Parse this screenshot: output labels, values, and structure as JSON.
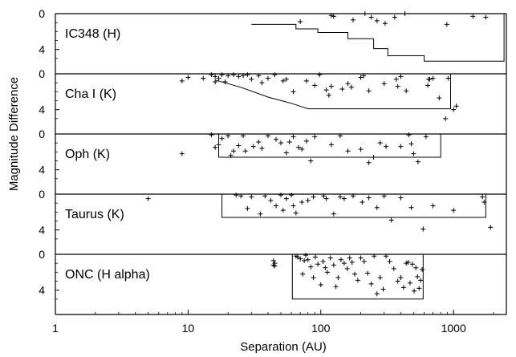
{
  "chart_data": {
    "type": "scatter",
    "xlabel": "Separation (AU)",
    "ylabel": "Magnitude Difference",
    "x_scale": "log",
    "xlim": [
      1,
      2500
    ],
    "x_ticks": [
      1,
      10,
      100,
      1000
    ],
    "x_tick_labels": [
      "1",
      "10",
      "100",
      "1000"
    ],
    "panels": [
      {
        "label": "IC348 (H)",
        "ylim": [
          0,
          6
        ],
        "y_ticks": [
          0,
          4
        ],
        "y_tick_labels": [
          "0",
          "4"
        ],
        "bounds": [
          [
            30,
            1.2
          ],
          [
            65,
            1.2
          ],
          [
            65,
            1.7
          ],
          [
            95,
            1.7
          ],
          [
            95,
            2.1
          ],
          [
            160,
            2.1
          ],
          [
            160,
            2.8
          ],
          [
            250,
            2.8
          ],
          [
            250,
            3.9
          ],
          [
            320,
            3.9
          ],
          [
            320,
            4.7
          ],
          [
            600,
            4.7
          ],
          [
            600,
            5.3
          ],
          [
            2400,
            5.3
          ],
          [
            2400,
            0
          ]
        ],
        "points": [
          [
            70,
            0.9
          ],
          [
            120,
            0.2
          ],
          [
            125,
            0.3
          ],
          [
            175,
            0.7
          ],
          [
            215,
            0
          ],
          [
            240,
            0.4
          ],
          [
            265,
            0.8
          ],
          [
            305,
            1.1
          ],
          [
            360,
            0.4
          ],
          [
            430,
            0
          ],
          [
            890,
            1.2
          ],
          [
            1400,
            0.3
          ],
          [
            1750,
            0.4
          ]
        ]
      },
      {
        "label": "Cha I (K)",
        "ylim": [
          0,
          6
        ],
        "y_ticks": [
          0,
          4
        ],
        "y_tick_labels": [
          "0",
          "4"
        ],
        "bounds": [
          [
            16,
            0.7
          ],
          [
            25,
            1.5
          ],
          [
            40,
            2.6
          ],
          [
            60,
            3.3
          ],
          [
            80,
            3.9
          ],
          [
            950,
            3.9
          ],
          [
            950,
            0
          ]
        ],
        "points": [
          [
            9,
            0.8
          ],
          [
            10,
            0.4
          ],
          [
            13,
            0.5
          ],
          [
            15,
            0.1
          ],
          [
            16,
            0.9
          ],
          [
            16,
            0.3
          ],
          [
            17,
            0.5
          ],
          [
            18,
            0.1
          ],
          [
            19,
            0.9
          ],
          [
            20,
            0.2
          ],
          [
            22,
            0.1
          ],
          [
            24,
            0.3
          ],
          [
            26,
            0.2
          ],
          [
            28,
            0.1
          ],
          [
            30,
            0.6
          ],
          [
            34,
            0.2
          ],
          [
            36,
            1.0
          ],
          [
            40,
            0.5
          ],
          [
            45,
            0.1
          ],
          [
            52,
            0.8
          ],
          [
            55,
            0.6
          ],
          [
            62,
            2.0
          ],
          [
            78,
            0.8
          ],
          [
            90,
            1.3
          ],
          [
            98,
            0.1
          ],
          [
            110,
            1.8
          ],
          [
            115,
            2.4
          ],
          [
            120,
            1.4
          ],
          [
            145,
            1.7
          ],
          [
            160,
            1.1
          ],
          [
            170,
            1.5
          ],
          [
            200,
            0.4
          ],
          [
            210,
            0.2
          ],
          [
            230,
            1.9
          ],
          [
            300,
            1.1
          ],
          [
            370,
            0.6
          ],
          [
            380,
            1.4
          ],
          [
            400,
            0.3
          ],
          [
            440,
            1.9
          ],
          [
            640,
            1.3
          ],
          [
            650,
            0.6
          ],
          [
            660,
            0.6
          ],
          [
            700,
            0.5
          ],
          [
            780,
            2.7
          ],
          [
            870,
            5.0
          ],
          [
            910,
            0.5
          ],
          [
            1000,
            4.0
          ],
          [
            1050,
            3.6
          ]
        ]
      },
      {
        "label": "Oph (K)",
        "ylim": [
          0,
          6
        ],
        "y_ticks": [
          0,
          4
        ],
        "y_tick_labels": [
          "0",
          "4"
        ],
        "bounds": [
          [
            17,
            0
          ],
          [
            17,
            2.6
          ],
          [
            800,
            2.6
          ],
          [
            800,
            0
          ]
        ],
        "points": [
          [
            9,
            2.2
          ],
          [
            15,
            0.1
          ],
          [
            16,
            1.5
          ],
          [
            17,
            1.2
          ],
          [
            18,
            0.5
          ],
          [
            20,
            0.2
          ],
          [
            21,
            2.4
          ],
          [
            22,
            1.9
          ],
          [
            24,
            1.3
          ],
          [
            26,
            0.2
          ],
          [
            27,
            1.9
          ],
          [
            31,
            1.4
          ],
          [
            34,
            0.9
          ],
          [
            36,
            1.6
          ],
          [
            40,
            0.2
          ],
          [
            46,
            0.6
          ],
          [
            50,
            1.0
          ],
          [
            55,
            2.1
          ],
          [
            58,
            0.9
          ],
          [
            62,
            0.3
          ],
          [
            68,
            1.5
          ],
          [
            72,
            1.7
          ],
          [
            78,
            0.8
          ],
          [
            84,
            3.0
          ],
          [
            90,
            0.3
          ],
          [
            120,
            1.2
          ],
          [
            140,
            0.2
          ],
          [
            160,
            1.9
          ],
          [
            200,
            1.7
          ],
          [
            230,
            3.2
          ],
          [
            250,
            2.6
          ],
          [
            280,
            1.0
          ],
          [
            310,
            1.4
          ],
          [
            400,
            1.4
          ],
          [
            460,
            0.1
          ],
          [
            480,
            1.1
          ],
          [
            500,
            2.2
          ],
          [
            540,
            3.1
          ],
          [
            620,
            0.3
          ]
        ]
      },
      {
        "label": "Taurus (K)",
        "ylim": [
          0,
          6
        ],
        "y_ticks": [
          0,
          4
        ],
        "y_tick_labels": [
          "0",
          "4"
        ],
        "bounds": [
          [
            18,
            0
          ],
          [
            18,
            2.6
          ],
          [
            1750,
            2.6
          ],
          [
            1750,
            0
          ]
        ],
        "points": [
          [
            5,
            0.5
          ],
          [
            23,
            0.1
          ],
          [
            25,
            0.2
          ],
          [
            28,
            1.6
          ],
          [
            30,
            0.3
          ],
          [
            35,
            2.2
          ],
          [
            38,
            0.2
          ],
          [
            42,
            0.7
          ],
          [
            46,
            1.3
          ],
          [
            50,
            0.1
          ],
          [
            52,
            1.8
          ],
          [
            55,
            0.5
          ],
          [
            60,
            0.1
          ],
          [
            62,
            1.3
          ],
          [
            65,
            2.1
          ],
          [
            72,
            0.9
          ],
          [
            80,
            0.7
          ],
          [
            88,
            0.3
          ],
          [
            105,
            0.2
          ],
          [
            110,
            0.5
          ],
          [
            125,
            2.2
          ],
          [
            140,
            0.3
          ],
          [
            150,
            0.5
          ],
          [
            175,
            0.2
          ],
          [
            205,
            0.9
          ],
          [
            230,
            0.4
          ],
          [
            265,
            1.5
          ],
          [
            300,
            0.2
          ],
          [
            340,
            2.9
          ],
          [
            400,
            0.4
          ],
          [
            480,
            1.5
          ],
          [
            590,
            3.9
          ],
          [
            700,
            1.3
          ],
          [
            1000,
            1.8
          ],
          [
            1650,
            0.3
          ],
          [
            1700,
            0.9
          ],
          [
            1900,
            3.7
          ]
        ]
      },
      {
        "label": "ONC (H alpha)",
        "ylim": [
          0,
          6
        ],
        "y_ticks": [
          0,
          4
        ],
        "y_tick_labels": [
          "0",
          "4"
        ],
        "bounds": [
          [
            61,
            0
          ],
          [
            61,
            5.0
          ],
          [
            590,
            5.0
          ],
          [
            590,
            0
          ]
        ],
        "points": [
          [
            44,
            0.7
          ],
          [
            44,
            1.2
          ],
          [
            45,
            1.0
          ],
          [
            45,
            1.3
          ],
          [
            65,
            0.2
          ],
          [
            67,
            0.3
          ],
          [
            70,
            0.5
          ],
          [
            73,
            2.2
          ],
          [
            75,
            0.7
          ],
          [
            77,
            0.1
          ],
          [
            80,
            0.6
          ],
          [
            84,
            1.4
          ],
          [
            88,
            2.6
          ],
          [
            91,
            0.3
          ],
          [
            95,
            1.1
          ],
          [
            100,
            3.4
          ],
          [
            104,
            0.8
          ],
          [
            108,
            1.5
          ],
          [
            112,
            2.0
          ],
          [
            118,
            0.4
          ],
          [
            125,
            1.2
          ],
          [
            130,
            3.6
          ],
          [
            135,
            2.6
          ],
          [
            142,
            0.6
          ],
          [
            150,
            1.0
          ],
          [
            158,
            1.6
          ],
          [
            165,
            0.4
          ],
          [
            172,
            0.9
          ],
          [
            180,
            2.2
          ],
          [
            190,
            2.9
          ],
          [
            200,
            0.4
          ],
          [
            212,
            0.8
          ],
          [
            225,
            2.1
          ],
          [
            240,
            3.3
          ],
          [
            252,
            0.2
          ],
          [
            265,
            4.4
          ],
          [
            280,
            2.6
          ],
          [
            295,
            3.9
          ],
          [
            310,
            0.2
          ],
          [
            330,
            0.8
          ],
          [
            355,
            1.6
          ],
          [
            380,
            3.0
          ],
          [
            400,
            2.6
          ],
          [
            420,
            3.7
          ],
          [
            440,
            1.0
          ],
          [
            455,
            0.9
          ],
          [
            470,
            3.2
          ],
          [
            490,
            1.1
          ],
          [
            505,
            4.1
          ],
          [
            520,
            1.5
          ],
          [
            535,
            2.5
          ],
          [
            550,
            3.8
          ],
          [
            565,
            2.9
          ],
          [
            580,
            1.7
          ]
        ]
      }
    ]
  }
}
